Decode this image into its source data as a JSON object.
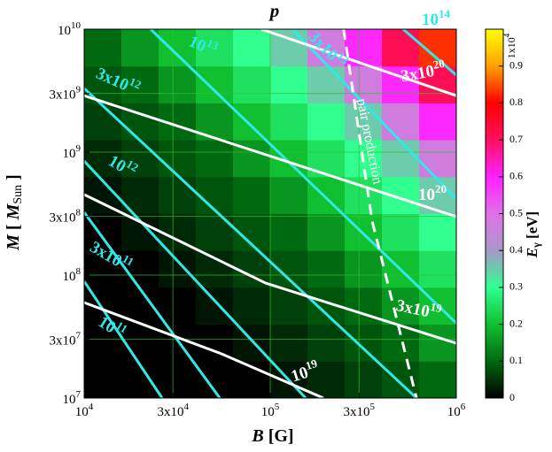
{
  "chart_data": {
    "type": "heatmap",
    "title": "p",
    "xlabel": [
      "B",
      " [G]"
    ],
    "ylabel": [
      "M",
      " [ ",
      "M",
      "Sun",
      "  ]"
    ],
    "xlim": [
      10000,
      1000000
    ],
    "ylim": [
      10000000,
      10000000000
    ],
    "log_x": true,
    "log_y": true,
    "grid": true,
    "grid_color": "#30c030",
    "xticks": [
      {
        "value": 10000,
        "label": [
          "10",
          "4"
        ]
      },
      {
        "value": 30000,
        "label": [
          "3x10",
          "4"
        ]
      },
      {
        "value": 100000,
        "label": [
          "10",
          "5"
        ]
      },
      {
        "value": 300000,
        "label": [
          "3x10",
          "5"
        ]
      },
      {
        "value": 1000000,
        "label": [
          "10",
          "6"
        ]
      }
    ],
    "yticks": [
      {
        "value": 10000000,
        "label": [
          "10",
          "7"
        ]
      },
      {
        "value": 30000000,
        "label": [
          "3x10",
          "7"
        ]
      },
      {
        "value": 100000000,
        "label": [
          "10",
          "8"
        ]
      },
      {
        "value": 300000000,
        "label": [
          "3x10",
          "8"
        ]
      },
      {
        "value": 1000000000,
        "label": [
          "10",
          "9"
        ]
      },
      {
        "value": 3000000000,
        "label": [
          "3x10",
          "9"
        ]
      },
      {
        "value": 10000000000,
        "label": [
          "10",
          "10"
        ]
      }
    ],
    "xbins": [
      10000,
      15849,
      25119,
      39811,
      63096,
      100000,
      158489,
      251189,
      398107,
      630957,
      1000000
    ],
    "ybins": [
      10000000,
      19953000,
      39811000,
      79433000,
      158489000,
      316228000,
      630957000,
      1258925000,
      2511886000,
      5011872000,
      10000000000
    ],
    "z": [
      [
        0,
        0,
        0,
        0,
        0,
        0.02,
        0.04,
        0.06,
        0.08,
        0.1
      ],
      [
        0,
        0,
        0,
        0,
        0.02,
        0.04,
        0.06,
        0.08,
        0.1,
        0.15
      ],
      [
        0,
        0,
        0,
        0.02,
        0.04,
        0.06,
        0.08,
        0.1,
        0.15,
        0.2
      ],
      [
        0,
        0,
        0.02,
        0.04,
        0.06,
        0.08,
        0.1,
        0.15,
        0.2,
        0.25
      ],
      [
        0,
        0.02,
        0.04,
        0.06,
        0.08,
        0.1,
        0.15,
        0.2,
        0.25,
        0.3
      ],
      [
        0.02,
        0.04,
        0.06,
        0.08,
        0.1,
        0.15,
        0.2,
        0.25,
        0.3,
        0.35
      ],
      [
        0.04,
        0.06,
        0.08,
        0.1,
        0.15,
        0.2,
        0.25,
        0.3,
        0.35,
        0.47
      ],
      [
        0.06,
        0.08,
        0.1,
        0.15,
        0.2,
        0.25,
        0.3,
        0.35,
        0.47,
        0.59
      ],
      [
        0.08,
        0.1,
        0.15,
        0.2,
        0.25,
        0.3,
        0.35,
        0.47,
        0.59,
        0.71
      ],
      [
        0.1,
        0.15,
        0.2,
        0.25,
        0.3,
        0.35,
        0.47,
        0.59,
        0.71,
        0.83
      ]
    ],
    "colormap": [
      [
        0,
        "#000000"
      ],
      [
        0.1,
        "#006a10"
      ],
      [
        0.2,
        "#10c030"
      ],
      [
        0.3,
        "#30ff90"
      ],
      [
        0.4,
        "#a898c8"
      ],
      [
        0.5,
        "#e070e8"
      ],
      [
        0.6,
        "#ff20ff"
      ],
      [
        0.7,
        "#ff1060"
      ],
      [
        0.8,
        "#ff0000"
      ],
      [
        0.9,
        "#ffa000"
      ],
      [
        1,
        "#ffff00"
      ]
    ],
    "clim": [
      0,
      1
    ],
    "cticks": [
      0,
      0.1,
      0.2,
      0.3,
      0.4,
      0.5,
      0.6,
      0.7,
      0.8,
      0.9
    ],
    "cbar_top_label": [
      "1x10",
      "4"
    ],
    "cbar_label": [
      "E",
      "γ",
      " [eV]"
    ],
    "contours": [
      {
        "label": [
          "10",
          "11"
        ],
        "color": "#30e8e8",
        "x": [
          10000,
          26240
        ],
        "y": [
          89000000,
          10000000
        ]
      },
      {
        "label": [
          "3x10",
          "11"
        ],
        "color": "#30e8e8",
        "x": [
          10000,
          53580
        ],
        "y": [
          324000000,
          10000000
        ]
      },
      {
        "label": [
          "10",
          "12"
        ],
        "color": "#30e8e8",
        "x": [
          10000,
          155000
        ],
        "y": [
          847000000,
          10000000
        ]
      },
      {
        "label": [
          "3x10",
          "12"
        ],
        "color": "#30e8e8",
        "x": [
          10000,
          611000
        ],
        "y": [
          3300000000,
          10000000
        ]
      },
      {
        "label": [
          "10",
          "13"
        ],
        "color": "#30e8e8",
        "x": [
          22760,
          1000000
        ],
        "y": [
          10000000000,
          40700000
        ]
      },
      {
        "label": [
          "3x10",
          "13"
        ],
        "color": "#30e8e8",
        "x": [
          131600,
          1000000
        ],
        "y": [
          10000000000,
          416000000
        ]
      },
      {
        "label": [
          "10",
          "14"
        ],
        "color": "#30e8e8",
        "x": [
          517800,
          1000000
        ],
        "y": [
          10000000000,
          4230000000
        ]
      },
      {
        "label": [
          "10",
          "19"
        ],
        "color": "#ffffff",
        "x": [
          10000,
          54700,
          193000
        ],
        "y": [
          59800000,
          22900000,
          10000000
        ]
      },
      {
        "label": [
          "3x10",
          "19"
        ],
        "color": "#ffffff",
        "x": [
          10000,
          94600,
          1000000
        ],
        "y": [
          452000000,
          86000000,
          27900000
        ]
      },
      {
        "label": [
          "10",
          "20"
        ],
        "color": "#ffffff",
        "x": [
          10000,
          1000000
        ],
        "y": [
          2880000000,
          299000000
        ]
      },
      {
        "label": [
          "3x10",
          "20"
        ],
        "color": "#ffffff",
        "x": [
          89600,
          1000000
        ],
        "y": [
          10000000000,
          2880000000
        ]
      }
    ],
    "pair_line": {
      "label": "pair production",
      "color": "#ffffff",
      "x": [
        248000,
        353000,
        611000
      ],
      "y": [
        10000000000,
        275000000,
        10000000
      ]
    }
  }
}
